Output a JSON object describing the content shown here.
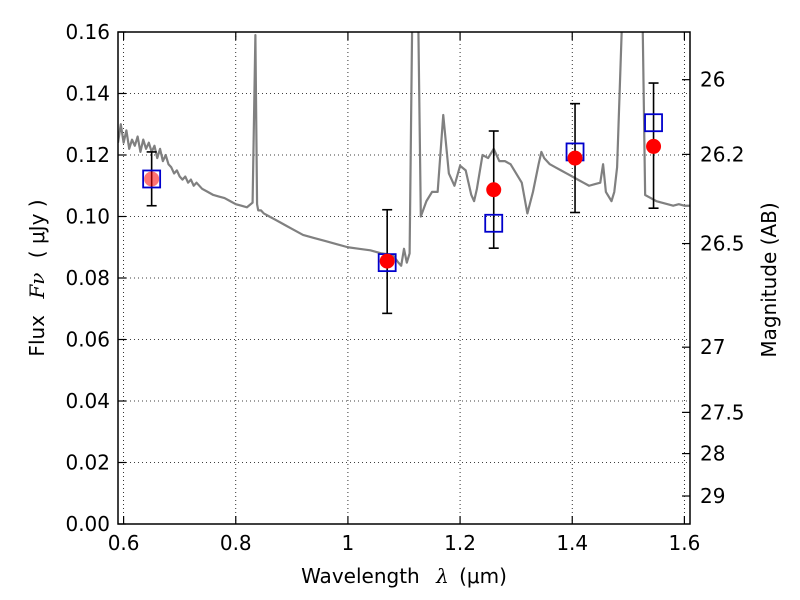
{
  "chart_data": {
    "type": "scatter",
    "xlabel": {
      "prefix": "Wavelength",
      "symbol": "λ",
      "unit": "(μm)"
    },
    "ylabel": {
      "prefix": "Flux",
      "symbol": "Fν",
      "unit": "( μJy )"
    },
    "ylabel_right": "Magnitude (AB)",
    "xlim": [
      0.59,
      1.61
    ],
    "ylim": [
      0,
      0.16
    ],
    "x_ticks": [
      0.6,
      0.8,
      1.0,
      1.2,
      1.4,
      1.6
    ],
    "x_tick_labels": [
      "0.6",
      "0.8",
      "1",
      "1.2",
      "1.4",
      "1.6"
    ],
    "y_ticks": [
      0.0,
      0.02,
      0.04,
      0.06,
      0.08,
      0.1,
      0.12,
      0.14,
      0.16
    ],
    "y_tick_labels": [
      "0.00",
      "0.02",
      "0.04",
      "0.06",
      "0.08",
      "0.10",
      "0.12",
      "0.14",
      "0.16"
    ],
    "right_ticks": [
      {
        "label": "26",
        "flux": 0.1445
      },
      {
        "label": "26.2",
        "flux": 0.1202
      },
      {
        "label": "26.5",
        "flux": 0.0912
      },
      {
        "label": "27",
        "flux": 0.0575
      },
      {
        "label": "27.5",
        "flux": 0.0363
      },
      {
        "label": "28",
        "flux": 0.0229
      },
      {
        "label": "29",
        "flux": 0.0091
      }
    ],
    "grid": true,
    "series": [
      {
        "kind": "line",
        "color": "#808080",
        "x": [
          0.59,
          0.595,
          0.6,
          0.605,
          0.61,
          0.615,
          0.62,
          0.625,
          0.63,
          0.635,
          0.64,
          0.645,
          0.65,
          0.655,
          0.66,
          0.665,
          0.67,
          0.675,
          0.68,
          0.685,
          0.69,
          0.695,
          0.7,
          0.705,
          0.71,
          0.715,
          0.72,
          0.725,
          0.73,
          0.74,
          0.75,
          0.76,
          0.77,
          0.78,
          0.79,
          0.8,
          0.81,
          0.82,
          0.83,
          0.835,
          0.838,
          0.84,
          0.845,
          0.85,
          0.86,
          0.87,
          0.88,
          0.89,
          0.9,
          0.92,
          0.94,
          0.96,
          0.98,
          1.0,
          1.02,
          1.04,
          1.06,
          1.08,
          1.09,
          1.095,
          1.1,
          1.105,
          1.11,
          1.115,
          1.12,
          1.125,
          1.13,
          1.14,
          1.15,
          1.16,
          1.17,
          1.18,
          1.19,
          1.2,
          1.21,
          1.22,
          1.225,
          1.23,
          1.24,
          1.25,
          1.26,
          1.27,
          1.28,
          1.29,
          1.3,
          1.31,
          1.32,
          1.33,
          1.34,
          1.345,
          1.35,
          1.36,
          1.37,
          1.38,
          1.39,
          1.4,
          1.41,
          1.42,
          1.43,
          1.44,
          1.45,
          1.455,
          1.46,
          1.47,
          1.475,
          1.48,
          1.49,
          1.5,
          1.51,
          1.52,
          1.525,
          1.53,
          1.54,
          1.55,
          1.56,
          1.57,
          1.58,
          1.59,
          1.6,
          1.61
        ],
        "y": [
          0.124,
          0.13,
          0.124,
          0.128,
          0.122,
          0.125,
          0.123,
          0.126,
          0.121,
          0.125,
          0.122,
          0.124,
          0.121,
          0.123,
          0.119,
          0.122,
          0.118,
          0.12,
          0.117,
          0.116,
          0.114,
          0.115,
          0.113,
          0.112,
          0.113,
          0.111,
          0.112,
          0.11,
          0.111,
          0.109,
          0.108,
          0.107,
          0.1065,
          0.106,
          0.105,
          0.104,
          0.1035,
          0.103,
          0.1045,
          0.159,
          0.104,
          0.102,
          0.102,
          0.101,
          0.1,
          0.099,
          0.098,
          0.097,
          0.096,
          0.094,
          0.093,
          0.092,
          0.091,
          0.09,
          0.0895,
          0.089,
          0.088,
          0.0875,
          0.085,
          0.084,
          0.0895,
          0.085,
          0.088,
          0.17,
          0.17,
          0.17,
          0.1,
          0.105,
          0.108,
          0.108,
          0.133,
          0.114,
          0.11,
          0.1165,
          0.115,
          0.107,
          0.105,
          0.109,
          0.12,
          0.119,
          0.122,
          0.118,
          0.118,
          0.117,
          0.114,
          0.111,
          0.101,
          0.108,
          0.117,
          0.121,
          0.119,
          0.117,
          0.116,
          0.115,
          0.114,
          0.113,
          0.112,
          0.111,
          0.11,
          0.1105,
          0.111,
          0.117,
          0.108,
          0.105,
          0.108,
          0.116,
          0.17,
          0.17,
          0.17,
          0.17,
          0.17,
          0.107,
          0.106,
          0.105,
          0.1045,
          0.104,
          0.1035,
          0.104,
          0.1035,
          0.1035
        ]
      },
      {
        "kind": "errorbar",
        "color": "#000000",
        "x": [
          0.65,
          1.07,
          1.26,
          1.405,
          1.545
        ],
        "y_low": [
          0.1035,
          0.0685,
          0.0897,
          0.1013,
          0.1027
        ],
        "y_high": [
          0.121,
          0.1022,
          0.1278,
          0.1367,
          0.1434
        ]
      },
      {
        "kind": "scatter",
        "marker": "open-square",
        "color": "#0000cc",
        "x": [
          0.65,
          1.07,
          1.26,
          1.405,
          1.545
        ],
        "y": [
          0.1122,
          0.085,
          0.0978,
          0.121,
          0.1305
        ]
      },
      {
        "kind": "scatter",
        "marker": "filled-circle",
        "color": "#ff0000",
        "x": [
          0.65,
          1.07,
          1.26,
          1.405,
          1.545
        ],
        "y": [
          0.1122,
          0.0855,
          0.1087,
          0.119,
          0.1228
        ]
      }
    ]
  }
}
